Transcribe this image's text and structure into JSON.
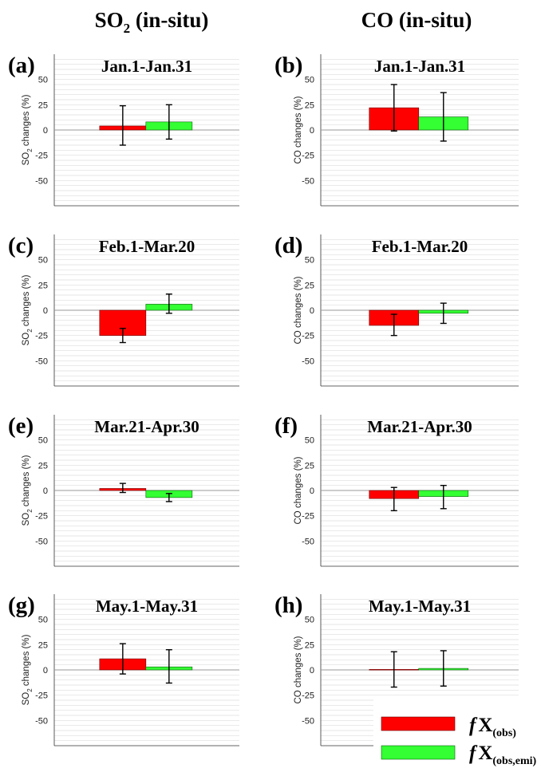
{
  "headers": {
    "left_main": "SO",
    "left_sub": "2",
    "left_rest": " (in-situ)",
    "right": "CO (in-situ)"
  },
  "legend": {
    "obs_f": "f",
    "obs_x": "X",
    "obs_sub": "(obs)",
    "emi_f": "f",
    "emi_x": "X",
    "emi_sub": "(obs,emi)"
  },
  "colors": {
    "obs": "#ff0000",
    "emi": "#33ff33",
    "zero_line": "#999999",
    "grid": "#dddddd"
  },
  "chart_data": [
    {
      "type": "bar",
      "panel": "(a)",
      "title": "Jan.1-Jan.31",
      "ylabel_main": "SO",
      "ylabel_sub": "2",
      "ylabel_rest": " changes (%)",
      "ylim": [
        -75,
        75
      ],
      "yticks": [
        50,
        25,
        0,
        -25,
        -50
      ],
      "tick_labels": [
        "50",
        "25",
        "0",
        "-25",
        "-50"
      ],
      "series": [
        {
          "values": [
            4
          ],
          "errors": [
            [
              -15,
              24
            ]
          ]
        },
        {
          "values": [
            8
          ],
          "errors": [
            [
              -9,
              25
            ]
          ]
        }
      ]
    },
    {
      "type": "bar",
      "panel": "(b)",
      "title": "Jan.1-Jan.31",
      "ylabel_main": "CO changes (%)",
      "ylabel_sub": "",
      "ylabel_rest": "",
      "ylim": [
        -75,
        75
      ],
      "yticks": [
        50,
        25,
        0,
        -25,
        -50
      ],
      "tick_labels": [
        "50",
        "25",
        "0",
        "-25",
        "-50"
      ],
      "series": [
        {
          "values": [
            22
          ],
          "errors": [
            [
              -1,
              45
            ]
          ]
        },
        {
          "values": [
            13
          ],
          "errors": [
            [
              -11,
              37
            ]
          ]
        }
      ]
    },
    {
      "type": "bar",
      "panel": "(c)",
      "title": "Feb.1-Mar.20",
      "ylabel_main": "SO",
      "ylabel_sub": "2",
      "ylabel_rest": " changes (%)",
      "ylim": [
        -75,
        75
      ],
      "yticks": [
        50,
        25,
        0,
        -25,
        -50
      ],
      "tick_labels": [
        "50",
        "25",
        "0",
        "-25",
        "-50"
      ],
      "series": [
        {
          "values": [
            -25
          ],
          "errors": [
            [
              -32,
              -18
            ]
          ]
        },
        {
          "values": [
            6
          ],
          "errors": [
            [
              -3,
              16
            ]
          ]
        }
      ]
    },
    {
      "type": "bar",
      "panel": "(d)",
      "title": "Feb.1-Mar.20",
      "ylabel_main": "CO changes (%)",
      "ylabel_sub": "",
      "ylabel_rest": "",
      "ylim": [
        -75,
        75
      ],
      "yticks": [
        50,
        25,
        0,
        -25,
        -50
      ],
      "tick_labels": [
        "50",
        "25",
        "0",
        "-25",
        "-50"
      ],
      "series": [
        {
          "values": [
            -15
          ],
          "errors": [
            [
              -25,
              -4
            ]
          ]
        },
        {
          "values": [
            -3
          ],
          "errors": [
            [
              -13,
              7
            ]
          ]
        }
      ]
    },
    {
      "type": "bar",
      "panel": "(e)",
      "title": "Mar.21-Apr.30",
      "ylabel_main": "SO",
      "ylabel_sub": "2",
      "ylabel_rest": " changes (%)",
      "ylim": [
        -75,
        75
      ],
      "yticks": [
        50,
        25,
        0,
        -25,
        -50
      ],
      "tick_labels": [
        "50",
        "25",
        "0",
        "-25",
        "-50"
      ],
      "series": [
        {
          "values": [
            2
          ],
          "errors": [
            [
              -2,
              7
            ]
          ]
        },
        {
          "values": [
            -7
          ],
          "errors": [
            [
              -11,
              -3
            ]
          ]
        }
      ]
    },
    {
      "type": "bar",
      "panel": "(f)",
      "title": "Mar.21-Apr.30",
      "ylabel_main": "CO changes (%)",
      "ylabel_sub": "",
      "ylabel_rest": "",
      "ylim": [
        -75,
        75
      ],
      "yticks": [
        50,
        25,
        0,
        -25,
        -50
      ],
      "tick_labels": [
        "50",
        "25",
        "0",
        "-25",
        "-50"
      ],
      "series": [
        {
          "values": [
            -8
          ],
          "errors": [
            [
              -20,
              3
            ]
          ]
        },
        {
          "values": [
            -6
          ],
          "errors": [
            [
              -18,
              5
            ]
          ]
        }
      ]
    },
    {
      "type": "bar",
      "panel": "(g)",
      "title": "May.1-May.31",
      "ylabel_main": "SO",
      "ylabel_sub": "2",
      "ylabel_rest": " changes (%)",
      "ylim": [
        -75,
        75
      ],
      "yticks": [
        50,
        25,
        0,
        -25,
        -50
      ],
      "tick_labels": [
        "50",
        "25",
        "0",
        "-25",
        "-50"
      ],
      "series": [
        {
          "values": [
            11
          ],
          "errors": [
            [
              -4,
              26
            ]
          ]
        },
        {
          "values": [
            3
          ],
          "errors": [
            [
              -13,
              20
            ]
          ]
        }
      ]
    },
    {
      "type": "bar",
      "panel": "(h)",
      "title": "May.1-May.31",
      "ylabel_main": "CO changes (%)",
      "ylabel_sub": "",
      "ylabel_rest": "",
      "ylim": [
        -75,
        75
      ],
      "yticks": [
        50,
        25,
        0,
        -25,
        -50
      ],
      "tick_labels": [
        "50",
        "25",
        "0",
        "-25",
        "-50"
      ],
      "series": [
        {
          "values": [
            0.5
          ],
          "errors": [
            [
              -17,
              18
            ]
          ]
        },
        {
          "values": [
            1.5
          ],
          "errors": [
            [
              -16,
              19
            ]
          ]
        }
      ]
    }
  ]
}
